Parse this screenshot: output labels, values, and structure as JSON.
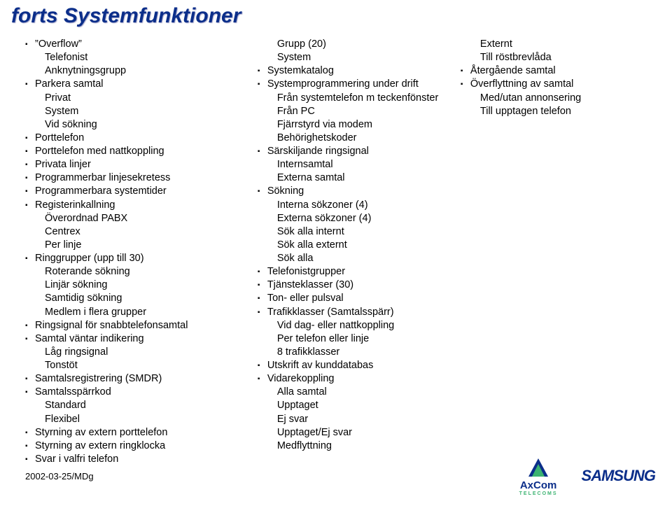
{
  "title": "forts Systemfunktioner",
  "footer_date": "2002-03-25/MDg",
  "logo_axcom_text": "AxCom",
  "logo_axcom_tag": "TELECOMS",
  "logo_samsung": "SAMSUNG",
  "col1": [
    {
      "t": "”Overflow”",
      "b": true,
      "i": 0
    },
    {
      "t": "Telefonist",
      "b": false,
      "i": 1
    },
    {
      "t": "Anknytningsgrupp",
      "b": false,
      "i": 1
    },
    {
      "t": "Parkera samtal",
      "b": true,
      "i": 0
    },
    {
      "t": "Privat",
      "b": false,
      "i": 1
    },
    {
      "t": "System",
      "b": false,
      "i": 1
    },
    {
      "t": "Vid sökning",
      "b": false,
      "i": 1
    },
    {
      "t": "Porttelefon",
      "b": true,
      "i": 0
    },
    {
      "t": "Porttelefon med nattkoppling",
      "b": true,
      "i": 0
    },
    {
      "t": "Privata linjer",
      "b": true,
      "i": 0
    },
    {
      "t": "Programmerbar linjesekretess",
      "b": true,
      "i": 0
    },
    {
      "t": "Programmerbara systemtider",
      "b": true,
      "i": 0
    },
    {
      "t": "Registerinkallning",
      "b": true,
      "i": 0
    },
    {
      "t": "Överordnad PABX",
      "b": false,
      "i": 1
    },
    {
      "t": "Centrex",
      "b": false,
      "i": 1
    },
    {
      "t": "Per linje",
      "b": false,
      "i": 1
    },
    {
      "t": "Ringgrupper (upp till 30)",
      "b": true,
      "i": 0
    },
    {
      "t": "Roterande sökning",
      "b": false,
      "i": 1
    },
    {
      "t": "Linjär sökning",
      "b": false,
      "i": 1
    },
    {
      "t": "Samtidig sökning",
      "b": false,
      "i": 1
    },
    {
      "t": "Medlem i flera grupper",
      "b": false,
      "i": 1
    },
    {
      "t": "Ringsignal för snabbtelefonsamtal",
      "b": true,
      "i": 0
    },
    {
      "t": "Samtal väntar indikering",
      "b": true,
      "i": 0
    },
    {
      "t": "Låg ringsignal",
      "b": false,
      "i": 1
    },
    {
      "t": "Tonstöt",
      "b": false,
      "i": 1
    },
    {
      "t": "Samtalsregistrering (SMDR)",
      "b": true,
      "i": 0
    },
    {
      "t": "Samtalsspärrkod",
      "b": true,
      "i": 0
    },
    {
      "t": "Standard",
      "b": false,
      "i": 1
    },
    {
      "t": "Flexibel",
      "b": false,
      "i": 1
    },
    {
      "t": "Styrning av extern porttelefon",
      "b": true,
      "i": 0
    },
    {
      "t": "Styrning av extern ringklocka",
      "b": true,
      "i": 0
    },
    {
      "t": "Svar i valfri telefon",
      "b": true,
      "i": 0
    }
  ],
  "col2": [
    {
      "t": "Grupp (20)",
      "b": false,
      "i": 1
    },
    {
      "t": "System",
      "b": false,
      "i": 1
    },
    {
      "t": "Systemkatalog",
      "b": true,
      "i": 0
    },
    {
      "t": "Systemprogrammering under drift",
      "b": true,
      "i": 0
    },
    {
      "t": "Från systemtelefon m teckenfönster",
      "b": false,
      "i": 1
    },
    {
      "t": "Från PC",
      "b": false,
      "i": 1
    },
    {
      "t": "Fjärrstyrd via modem",
      "b": false,
      "i": 1
    },
    {
      "t": "Behörighetskoder",
      "b": false,
      "i": 1
    },
    {
      "t": "Särskiljande ringsignal",
      "b": true,
      "i": 0
    },
    {
      "t": "Internsamtal",
      "b": false,
      "i": 1
    },
    {
      "t": "Externa samtal",
      "b": false,
      "i": 1
    },
    {
      "t": "Sökning",
      "b": true,
      "i": 0
    },
    {
      "t": "Interna sökzoner (4)",
      "b": false,
      "i": 1
    },
    {
      "t": "Externa sökzoner (4)",
      "b": false,
      "i": 1
    },
    {
      "t": "Sök alla internt",
      "b": false,
      "i": 1
    },
    {
      "t": "Sök alla externt",
      "b": false,
      "i": 1
    },
    {
      "t": "Sök alla",
      "b": false,
      "i": 1
    },
    {
      "t": "Telefonistgrupper",
      "b": true,
      "i": 0
    },
    {
      "t": "Tjänsteklasser (30)",
      "b": true,
      "i": 0
    },
    {
      "t": "Ton- eller pulsval",
      "b": true,
      "i": 0
    },
    {
      "t": "Trafikklasser (Samtalsspärr)",
      "b": true,
      "i": 0
    },
    {
      "t": "Vid dag- eller nattkoppling",
      "b": false,
      "i": 1
    },
    {
      "t": "Per telefon eller linje",
      "b": false,
      "i": 1
    },
    {
      "t": "8 trafikklasser",
      "b": false,
      "i": 1
    },
    {
      "t": "Utskrift av kunddatabas",
      "b": true,
      "i": 0
    },
    {
      "t": "Vidarekoppling",
      "b": true,
      "i": 0
    },
    {
      "t": "Alla samtal",
      "b": false,
      "i": 1
    },
    {
      "t": "Upptaget",
      "b": false,
      "i": 1
    },
    {
      "t": "Ej svar",
      "b": false,
      "i": 1
    },
    {
      "t": "Upptaget/Ej svar",
      "b": false,
      "i": 1
    },
    {
      "t": "Medflyttning",
      "b": false,
      "i": 1
    }
  ],
  "col3": [
    {
      "t": "Externt",
      "b": false,
      "i": 1
    },
    {
      "t": "Till röstbrevlåda",
      "b": false,
      "i": 1
    },
    {
      "t": "Återgående samtal",
      "b": true,
      "i": 0
    },
    {
      "t": "Överflyttning av samtal",
      "b": true,
      "i": 0
    },
    {
      "t": "Med/utan annonsering",
      "b": false,
      "i": 1
    },
    {
      "t": "Till upptagen telefon",
      "b": false,
      "i": 1
    }
  ]
}
